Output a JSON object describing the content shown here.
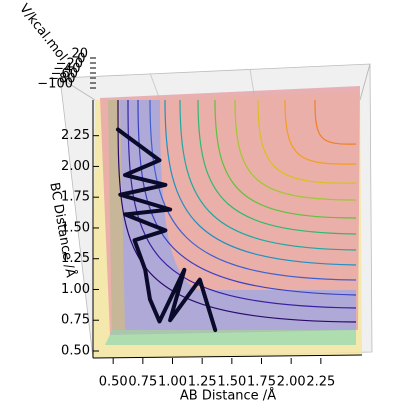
{
  "chart_data": {
    "type": "surface-trajectory",
    "xlabel": "AB Distance /Å",
    "ylabel": "BC Distance /Å",
    "zlabel": "V/kcal.mol",
    "xlim": [
      0.33,
      2.58
    ],
    "ylim": [
      0.443,
      2.54
    ],
    "zlim": [
      -100,
      20
    ],
    "xticks": [
      {
        "value": 0.5,
        "label": "0.50"
      },
      0.75,
      {
        "value": 1.0,
        "label": "1.00"
      },
      1.25,
      {
        "value": 1.5,
        "label": "1.50"
      },
      1.75,
      {
        "value": 2.0,
        "label": "2.00"
      },
      2.25
    ],
    "yticks": [
      {
        "value": 0.5,
        "label": "0.50"
      },
      0.75,
      {
        "value": 1.0,
        "label": "1.00"
      },
      1.25,
      {
        "value": 1.5,
        "label": "1.50"
      },
      1.75,
      {
        "value": 2.0,
        "label": "2.00"
      },
      2.25
    ],
    "zticks": [
      {
        "value": -100,
        "label": "−100"
      },
      {
        "value": -80,
        "label": "−80"
      },
      {
        "value": -60,
        "label": "−60"
      },
      {
        "value": -40,
        "label": "−40"
      },
      {
        "value": -20,
        "label": "−20"
      },
      0,
      20
    ],
    "series": [
      {
        "color": "#0a0a2a",
        "x": [
          0.54,
          0.89,
          0.6,
          0.94,
          0.56,
          0.98,
          0.6,
          0.94,
          0.68,
          0.77,
          0.81,
          0.89,
          1.1,
          0.98,
          1.23,
          1.36
        ],
        "values": [
          2.3,
          2.05,
          1.93,
          1.85,
          1.77,
          1.65,
          1.61,
          1.48,
          1.4,
          1.16,
          0.92,
          0.74,
          1.16,
          0.75,
          1.08,
          0.67
        ]
      }
    ]
  }
}
